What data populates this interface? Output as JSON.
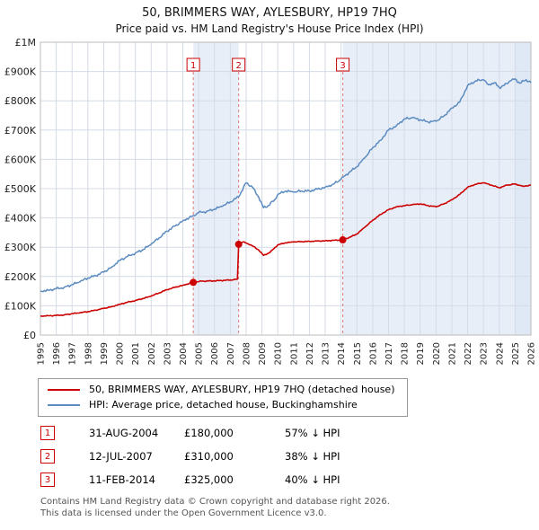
{
  "title": "50, BRIMMERS WAY, AYLESBURY, HP19 7HQ",
  "subtitle": "Price paid vs. HM Land Registry's House Price Index (HPI)",
  "chart_data": {
    "type": "line",
    "xlim": [
      1995,
      2026
    ],
    "ylim": [
      0,
      1000000
    ],
    "x_ticks": [
      1995,
      1996,
      1997,
      1998,
      1999,
      2000,
      2001,
      2002,
      2003,
      2004,
      2005,
      2006,
      2007,
      2008,
      2009,
      2010,
      2011,
      2012,
      2013,
      2014,
      2015,
      2016,
      2017,
      2018,
      2019,
      2020,
      2021,
      2022,
      2023,
      2024,
      2025,
      2026
    ],
    "y_ticks": [
      "£0",
      "£100K",
      "£200K",
      "£300K",
      "£400K",
      "£500K",
      "£600K",
      "£700K",
      "£800K",
      "£900K",
      "£1M"
    ],
    "grid_color": "#d4dbe6",
    "shaded_regions": [
      [
        2004.66,
        2007.53,
        "#e8eef8"
      ],
      [
        2014.11,
        2025,
        "#e8eef8"
      ],
      [
        2025,
        2026,
        "#dfe8f5"
      ]
    ],
    "series": [
      {
        "id": "property-price-line",
        "name": "50, BRIMMERS WAY, AYLESBURY, HP19 7HQ (detached house)",
        "color": "#cc0000",
        "width": 1.6,
        "wiggle": 1800,
        "points": [
          [
            1995,
            65000
          ],
          [
            1995.5,
            66000
          ],
          [
            1996,
            67000
          ],
          [
            1996.5,
            69000
          ],
          [
            1997,
            73000
          ],
          [
            1997.5,
            76000
          ],
          [
            1998,
            80000
          ],
          [
            1998.5,
            85000
          ],
          [
            1999,
            91000
          ],
          [
            1999.5,
            97000
          ],
          [
            2000,
            105000
          ],
          [
            2000.5,
            112000
          ],
          [
            2001,
            118000
          ],
          [
            2001.5,
            125000
          ],
          [
            2002,
            133000
          ],
          [
            2002.5,
            144000
          ],
          [
            2003,
            155000
          ],
          [
            2003.5,
            163000
          ],
          [
            2004,
            170000
          ],
          [
            2004.66,
            180000
          ],
          [
            2005.2,
            184000
          ],
          [
            2006,
            185000
          ],
          [
            2007,
            188000
          ],
          [
            2007.45,
            191000
          ],
          [
            2007.53,
            310000
          ],
          [
            2007.8,
            318000
          ],
          [
            2008.3,
            308000
          ],
          [
            2008.8,
            290000
          ],
          [
            2009.1,
            272000
          ],
          [
            2009.5,
            282000
          ],
          [
            2010,
            308000
          ],
          [
            2010.5,
            315000
          ],
          [
            2011,
            318000
          ],
          [
            2012,
            320000
          ],
          [
            2013,
            322000
          ],
          [
            2014.11,
            325000
          ],
          [
            2014.6,
            335000
          ],
          [
            2015,
            345000
          ],
          [
            2015.5,
            368000
          ],
          [
            2016,
            392000
          ],
          [
            2016.5,
            412000
          ],
          [
            2017,
            428000
          ],
          [
            2017.5,
            438000
          ],
          [
            2018,
            442000
          ],
          [
            2018.5,
            445000
          ],
          [
            2019,
            448000
          ],
          [
            2019.5,
            442000
          ],
          [
            2020,
            438000
          ],
          [
            2020.5,
            448000
          ],
          [
            2021,
            462000
          ],
          [
            2021.5,
            480000
          ],
          [
            2022,
            505000
          ],
          [
            2022.5,
            515000
          ],
          [
            2023,
            520000
          ],
          [
            2023.5,
            512000
          ],
          [
            2024,
            503000
          ],
          [
            2024.5,
            512000
          ],
          [
            2025,
            516000
          ],
          [
            2025.5,
            508000
          ],
          [
            2026,
            512000
          ]
        ]
      },
      {
        "id": "hpi-line",
        "name": "HPI: Average price, detached house, Buckinghamshire",
        "color": "#5b8bc0",
        "width": 1.5,
        "wiggle": 4500,
        "points": [
          [
            1995,
            150000
          ],
          [
            1995.5,
            153000
          ],
          [
            1996,
            158000
          ],
          [
            1996.5,
            163000
          ],
          [
            1997,
            172000
          ],
          [
            1997.5,
            182000
          ],
          [
            1998,
            195000
          ],
          [
            1998.5,
            203000
          ],
          [
            1999,
            215000
          ],
          [
            1999.5,
            232000
          ],
          [
            2000,
            255000
          ],
          [
            2000.5,
            268000
          ],
          [
            2001,
            280000
          ],
          [
            2001.5,
            292000
          ],
          [
            2002,
            310000
          ],
          [
            2002.5,
            332000
          ],
          [
            2003,
            355000
          ],
          [
            2003.5,
            372000
          ],
          [
            2004,
            390000
          ],
          [
            2004.66,
            408000
          ],
          [
            2005,
            418000
          ],
          [
            2005.5,
            422000
          ],
          [
            2006,
            430000
          ],
          [
            2006.5,
            440000
          ],
          [
            2007,
            455000
          ],
          [
            2007.53,
            472000
          ],
          [
            2008,
            520000
          ],
          [
            2008.4,
            505000
          ],
          [
            2008.8,
            470000
          ],
          [
            2009.1,
            435000
          ],
          [
            2009.4,
            442000
          ],
          [
            2009.8,
            462000
          ],
          [
            2010,
            480000
          ],
          [
            2010.5,
            492000
          ],
          [
            2011,
            488000
          ],
          [
            2011.5,
            492000
          ],
          [
            2012,
            492000
          ],
          [
            2012.5,
            498000
          ],
          [
            2013,
            505000
          ],
          [
            2013.5,
            515000
          ],
          [
            2014,
            532000
          ],
          [
            2014.5,
            555000
          ],
          [
            2015,
            575000
          ],
          [
            2015.5,
            605000
          ],
          [
            2016,
            640000
          ],
          [
            2016.5,
            665000
          ],
          [
            2017,
            700000
          ],
          [
            2017.5,
            715000
          ],
          [
            2018,
            738000
          ],
          [
            2018.5,
            742000
          ],
          [
            2019,
            735000
          ],
          [
            2019.5,
            728000
          ],
          [
            2020,
            730000
          ],
          [
            2020.5,
            748000
          ],
          [
            2021,
            775000
          ],
          [
            2021.5,
            795000
          ],
          [
            2022,
            852000
          ],
          [
            2022.5,
            868000
          ],
          [
            2023,
            872000
          ],
          [
            2023.3,
            855000
          ],
          [
            2023.7,
            862000
          ],
          [
            2024,
            845000
          ],
          [
            2024.3,
            852000
          ],
          [
            2024.7,
            868000
          ],
          [
            2025,
            875000
          ],
          [
            2025.3,
            860000
          ],
          [
            2025.7,
            872000
          ],
          [
            2026,
            862000
          ]
        ]
      }
    ],
    "sales": [
      {
        "label": "1",
        "x": 2004.66,
        "price": 180000,
        "date": "31-AUG-2004",
        "price_text": "£180,000",
        "diff": "57% ↓ HPI"
      },
      {
        "label": "2",
        "x": 2007.53,
        "price": 310000,
        "date": "12-JUL-2007",
        "price_text": "£310,000",
        "diff": "38% ↓ HPI"
      },
      {
        "label": "3",
        "x": 2014.11,
        "price": 325000,
        "date": "11-FEB-2014",
        "price_text": "£325,000",
        "diff": "40% ↓ HPI"
      }
    ],
    "marker_color": "#cc0000",
    "dashed_line_color": "#dd7777"
  },
  "legend": {
    "items": [
      {
        "label": "50, BRIMMERS WAY, AYLESBURY, HP19 7HQ (detached house)",
        "color": "#cc0000"
      },
      {
        "label": "HPI: Average price, detached house, Buckinghamshire",
        "color": "#5b8bc0"
      }
    ]
  },
  "table": {
    "rows": [
      {
        "num": "1",
        "date": "31-AUG-2004",
        "price": "£180,000",
        "diff": "57% ↓ HPI"
      },
      {
        "num": "2",
        "date": "12-JUL-2007",
        "price": "£310,000",
        "diff": "38% ↓ HPI"
      },
      {
        "num": "3",
        "date": "11-FEB-2014",
        "price": "£325,000",
        "diff": "40% ↓ HPI"
      }
    ]
  },
  "footer": {
    "line1": "Contains HM Land Registry data © Crown copyright and database right 2026.",
    "line2": "This data is licensed under the Open Government Licence v3.0."
  }
}
